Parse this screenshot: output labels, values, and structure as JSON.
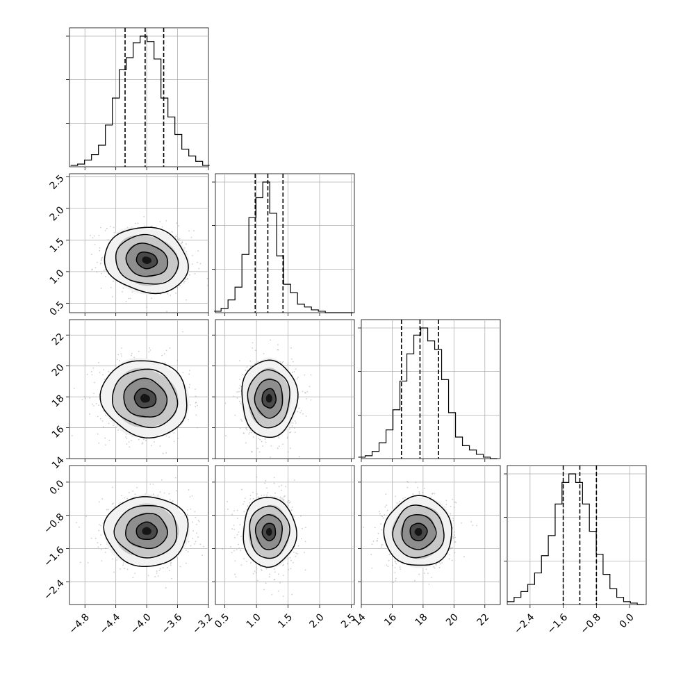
{
  "chart_data": {
    "type": "corner",
    "grid": true,
    "parameters": [
      {
        "range": [
          -5.0,
          -3.2
        ],
        "ticks": [
          -4.8,
          -4.4,
          -4.0,
          -3.6,
          -3.2
        ],
        "tick_labels": [
          "−4.8",
          "−4.4",
          "−4.0",
          "−3.6",
          "−3.2"
        ],
        "quantiles": [
          -4.28,
          -4.02,
          -3.78
        ]
      },
      {
        "range": [
          0.35,
          2.55
        ],
        "ticks": [
          0.5,
          1.0,
          1.5,
          2.0,
          2.5
        ],
        "tick_labels": [
          "0.5",
          "1.0",
          "1.5",
          "2.0",
          "2.5"
        ],
        "quantiles": [
          0.98,
          1.18,
          1.42
        ]
      },
      {
        "range": [
          14.0,
          23.0
        ],
        "ticks": [
          14,
          16,
          18,
          20,
          22
        ],
        "tick_labels": [
          "14",
          "16",
          "18",
          "20",
          "22"
        ],
        "quantiles": [
          16.6,
          17.8,
          19.0
        ]
      },
      {
        "range": [
          -2.95,
          0.4
        ],
        "ticks": [
          -2.4,
          -1.6,
          -0.8,
          0.0
        ],
        "tick_labels": [
          "−2.4",
          "−1.6",
          "−0.8",
          "0.0"
        ],
        "quantiles": [
          -1.6,
          -1.2,
          -0.8
        ]
      }
    ],
    "histograms": [
      {
        "bin_edges": [
          -4.985,
          -4.895,
          -4.805,
          -4.715,
          -4.625,
          -4.535,
          -4.445,
          -4.355,
          -4.265,
          -4.175,
          -4.085,
          -3.995,
          -3.905,
          -3.815,
          -3.725,
          -3.635,
          -3.545,
          -3.455,
          -3.365,
          -3.275,
          -3.185
        ],
        "counts": [
          1,
          2,
          5,
          9,
          16,
          31,
          51,
          72,
          81,
          92,
          97,
          93,
          80,
          51,
          37,
          24,
          13,
          8,
          4,
          1
        ]
      },
      {
        "bin_edges": [
          0.33,
          0.44,
          0.55,
          0.66,
          0.77,
          0.88,
          0.99,
          1.1,
          1.21,
          1.32,
          1.43,
          1.54,
          1.65,
          1.76,
          1.87,
          1.98,
          2.09,
          2.2,
          2.31,
          2.42,
          2.53
        ],
        "counts": [
          1,
          3,
          9,
          18,
          41,
          67,
          81,
          92,
          70,
          40,
          20,
          14,
          6,
          4,
          2,
          1,
          0,
          0,
          0,
          0
        ]
      },
      {
        "bin_edges": [
          13.8,
          14.25,
          14.7,
          15.15,
          15.6,
          16.05,
          16.5,
          16.95,
          17.4,
          17.85,
          18.3,
          18.75,
          19.2,
          19.65,
          20.1,
          20.55,
          21.0,
          21.45,
          21.9,
          22.35,
          22.8
        ],
        "counts": [
          1,
          2,
          5,
          11,
          20,
          34,
          54,
          73,
          86,
          91,
          82,
          76,
          55,
          32,
          15,
          9,
          6,
          3,
          1,
          0
        ]
      },
      {
        "bin_edges": [
          -2.95,
          -2.785,
          -2.62,
          -2.455,
          -2.29,
          -2.125,
          -1.96,
          -1.795,
          -1.63,
          -1.465,
          -1.3,
          -1.135,
          -0.97,
          -0.805,
          -0.64,
          -0.475,
          -0.31,
          -0.145,
          0.02,
          0.185,
          0.35
        ],
        "counts": [
          2,
          5,
          9,
          14,
          22,
          34,
          48,
          70,
          85,
          91,
          85,
          70,
          51,
          35,
          21,
          11,
          5,
          2,
          1,
          0
        ]
      }
    ],
    "pairs": [
      {
        "x": 0,
        "y": 1,
        "center": [
          -4.0,
          1.18
        ],
        "sd": [
          0.27,
          0.26
        ],
        "rho": -0.12
      },
      {
        "x": 0,
        "y": 2,
        "center": [
          -4.02,
          17.9
        ],
        "sd": [
          0.28,
          1.25
        ],
        "rho": -0.08
      },
      {
        "x": 1,
        "y": 2,
        "center": [
          1.2,
          17.9
        ],
        "sd": [
          0.22,
          1.25
        ],
        "rho": 0.0
      },
      {
        "x": 0,
        "y": 3,
        "center": [
          -4.0,
          -1.18
        ],
        "sd": [
          0.27,
          0.42
        ],
        "rho": 0.0
      },
      {
        "x": 1,
        "y": 3,
        "center": [
          1.2,
          -1.2
        ],
        "sd": [
          0.21,
          0.42
        ],
        "rho": 0.0
      },
      {
        "x": 2,
        "y": 3,
        "center": [
          17.7,
          -1.2
        ],
        "sd": [
          1.1,
          0.42
        ],
        "rho": 0.0
      }
    ],
    "contour_levels_sigma": [
      0.5,
      1.0,
      1.5,
      2.0
    ],
    "colors": {
      "line": "#000000",
      "grid": "#b0b0b0",
      "scatter": "#9a9a9a"
    }
  }
}
